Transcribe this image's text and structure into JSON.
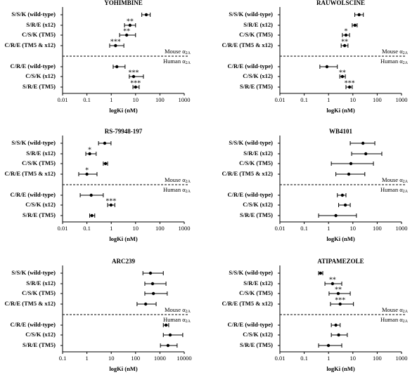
{
  "chart_data": [
    {
      "type": "forest",
      "title": "YOHIMBINE",
      "x_label": "logKi (nM)",
      "xscale": "log",
      "xlim": [
        0.01,
        1000
      ],
      "xticks": [
        0.01,
        0.1,
        1,
        10,
        100,
        1000
      ],
      "color": "#000000",
      "groups": [
        {
          "label": "Mouse α",
          "label_sub": "2A",
          "categories": [
            "S/S/K (wild-type)",
            "S/R/E (x12)",
            "C/S/K (TM5)",
            "C/R/E (TM5 & x12)"
          ],
          "values": [
            27.5,
            5.9,
            4.3,
            1.5
          ],
          "lower": [
            18,
            3.5,
            2.2,
            0.86
          ],
          "upper": [
            40,
            10,
            10,
            3.3
          ],
          "annotations": [
            null,
            "**",
            "**",
            "***"
          ]
        },
        {
          "label": "Human α",
          "label_sub": "2A",
          "categories": [
            "C/R/E (wild-type)",
            "C/S/K (x12)",
            "S/R/E (TM5)"
          ],
          "values": [
            1.7,
            8.3,
            10
          ],
          "lower": [
            1.2,
            5.5,
            7.8
          ],
          "upper": [
            3.7,
            21,
            14
          ],
          "annotations": [
            null,
            "***",
            "***"
          ]
        }
      ]
    },
    {
      "type": "forest",
      "title": "RAUWOLSCINE",
      "x_label": "logKi (nM)",
      "xscale": "log",
      "xlim": [
        0.01,
        1000
      ],
      "xticks": [
        0.01,
        0.1,
        1,
        10,
        100,
        1000
      ],
      "color": "#000000",
      "groups": [
        {
          "label": "Mouse α",
          "label_sub": "2A",
          "categories": [
            "S/S/K (wild-type)",
            "S/R/E (x12)",
            "C/S/K (TM5)",
            "C/R/E (TM5 & x12)"
          ],
          "values": [
            18,
            12.2,
            5.2,
            4.6
          ],
          "lower": [
            12,
            9.4,
            3.7,
            3.3
          ],
          "upper": [
            27,
            15,
            7.3,
            6.3
          ],
          "annotations": [
            null,
            null,
            "*",
            "**"
          ]
        },
        {
          "label": "Human α",
          "label_sub": "2A",
          "categories": [
            "C/R/E (wild-type)",
            "C/S/K (x12)",
            "S/R/E (TM5)"
          ],
          "values": [
            0.86,
            3.7,
            7.3
          ],
          "lower": [
            0.44,
            2.9,
            5.2
          ],
          "upper": [
            2.3,
            4.9,
            9.4
          ],
          "annotations": [
            null,
            "**",
            "***"
          ]
        }
      ]
    },
    {
      "type": "forest",
      "title": "RS-79948-197",
      "x_label": "logKi (nM)",
      "xscale": "log",
      "xlim": [
        0.01,
        1000
      ],
      "xticks": [
        0.01,
        0.1,
        1,
        10,
        100,
        1000
      ],
      "color": "#000000",
      "groups": [
        {
          "label": "Mouse α",
          "label_sub": "2A",
          "categories": [
            "S/S/K (wild-type)",
            "S/R/E (x12)",
            "C/S/K (TM5)",
            "C/R/E (TM5 & x12)"
          ],
          "values": [
            0.54,
            0.13,
            0.58,
            0.1
          ],
          "lower": [
            0.3,
            0.09,
            0.47,
            0.046
          ],
          "upper": [
            0.98,
            0.24,
            0.71,
            0.26
          ],
          "annotations": [
            null,
            "*",
            null,
            "*"
          ]
        },
        {
          "label": "Human α",
          "label_sub": "2A",
          "categories": [
            "C/R/E (wild-type)",
            "C/S/K (x12)",
            "S/R/E (TM5)"
          ],
          "values": [
            0.15,
            0.98,
            0.16
          ],
          "lower": [
            0.053,
            0.71,
            0.13
          ],
          "upper": [
            0.47,
            1.4,
            0.21
          ],
          "annotations": [
            null,
            "***",
            null
          ]
        }
      ]
    },
    {
      "type": "forest",
      "title": "WB4101",
      "x_label": "logKi (nM)",
      "xscale": "log",
      "xlim": [
        0.01,
        1000
      ],
      "xticks": [
        0.01,
        0.1,
        1,
        10,
        100,
        1000
      ],
      "color": "#000000",
      "groups": [
        {
          "label": "Mouse α",
          "label_sub": "2A",
          "categories": [
            "S/S/K (wild-type)",
            "S/R/E (x12)",
            "C/S/K (TM5)",
            "C/R/E (TM5 & x12)"
          ],
          "values": [
            26,
            34,
            8.3,
            6.8
          ],
          "lower": [
            7.8,
            8.9,
            1.3,
            2
          ],
          "upper": [
            80,
            155,
            70,
            31
          ],
          "annotations": [
            null,
            null,
            null,
            null
          ]
        },
        {
          "label": "Human α",
          "label_sub": "2A",
          "categories": [
            "C/R/E (wild-type)",
            "C/S/K (x12)",
            "S/R/E (TM5)"
          ],
          "values": [
            3.7,
            4.9,
            2
          ],
          "lower": [
            2.3,
            2.6,
            0.39
          ],
          "upper": [
            5.2,
            7.8,
            14
          ],
          "annotations": [
            null,
            null,
            null
          ]
        }
      ]
    },
    {
      "type": "forest",
      "title": "ARC239",
      "x_label": "logKi (nM)",
      "xscale": "log",
      "xlim": [
        0.1,
        10000
      ],
      "xticks": [
        0.1,
        1,
        10,
        100,
        1000,
        10000
      ],
      "color": "#000000",
      "groups": [
        {
          "label": "Mouse α",
          "label_sub": "2A",
          "categories": [
            "S/S/K (wild-type)",
            "S/R/E (x12)",
            "C/S/K (TM5)",
            "C/R/E (TM5 & x12)"
          ],
          "values": [
            410,
            500,
            540,
            260
          ],
          "lower": [
            200,
            240,
            240,
            115
          ],
          "upper": [
            1380,
            1780,
            2000,
            700
          ],
          "annotations": [
            null,
            null,
            null,
            null
          ]
        },
        {
          "label": "Human α",
          "label_sub": "2A",
          "categories": [
            "C/R/E (wild-type)",
            "C/S/K (x12)",
            "S/R/E (TM5)"
          ],
          "values": [
            1780,
            2650,
            2150
          ],
          "lower": [
            1380,
            1380,
            1050
          ],
          "upper": [
            2300,
            8700,
            5100
          ],
          "annotations": [
            null,
            null,
            null
          ]
        }
      ]
    },
    {
      "type": "forest",
      "title": "ATIPAMEZOLE",
      "x_label": "logKi (nM)",
      "xscale": "log",
      "xlim": [
        0.01,
        1000
      ],
      "xticks": [
        0.01,
        0.1,
        1,
        10,
        100,
        1000
      ],
      "color": "#000000",
      "groups": [
        {
          "label": "Mouse α",
          "label_sub": "2A",
          "categories": [
            "S/S/K (wild-type)",
            "S/R/E (x12)",
            "C/S/K (TM5)",
            "C/R/E (TM5 & x12)"
          ],
          "values": [
            0.47,
            1.46,
            2.5,
            3.0
          ],
          "lower": [
            0.39,
            0.71,
            1.05,
            1.2
          ],
          "upper": [
            0.58,
            3.5,
            7.8,
            10.6
          ],
          "annotations": [
            null,
            "**",
            "**",
            "***"
          ]
        },
        {
          "label": "Human α",
          "label_sub": "2A",
          "categories": [
            "C/R/E (wild-type)",
            "C/S/K (x12)",
            "S/R/E (TM5)"
          ],
          "values": [
            2.0,
            2.6,
            0.99
          ],
          "lower": [
            1.3,
            1.3,
            0.39
          ],
          "upper": [
            3.0,
            5.9,
            3.5
          ],
          "annotations": [
            null,
            null,
            null
          ]
        }
      ]
    }
  ]
}
